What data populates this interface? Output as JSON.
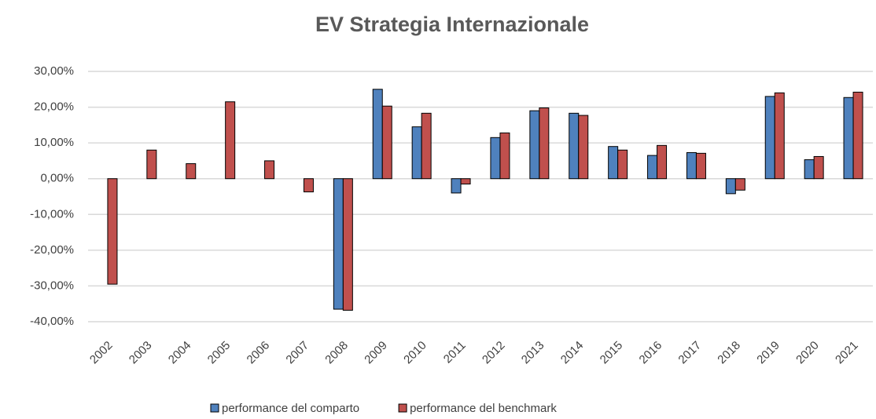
{
  "chart_data": {
    "type": "bar",
    "title": "EV Strategia Internazionale",
    "categories": [
      "2002",
      "2003",
      "2004",
      "2005",
      "2006",
      "2007",
      "2008",
      "2009",
      "2010",
      "2011",
      "2012",
      "2013",
      "2014",
      "2015",
      "2016",
      "2017",
      "2018",
      "2019",
      "2020",
      "2021"
    ],
    "series": [
      {
        "name": "performance del comparto",
        "color": "#4f81bd",
        "values": [
          null,
          null,
          null,
          null,
          null,
          null,
          -36.5,
          25,
          14.5,
          -4,
          11.5,
          19,
          18.3,
          9,
          6.5,
          7.3,
          -4.2,
          23,
          5.3,
          22.7
        ]
      },
      {
        "name": "performance del benchmark",
        "color": "#c0504d",
        "values": [
          -29.5,
          8,
          4.2,
          21.5,
          5,
          -3.7,
          -36.8,
          20.3,
          18.3,
          -1.5,
          12.8,
          19.8,
          17.7,
          8,
          9.3,
          7.1,
          -3.2,
          24,
          6.2,
          24.2
        ]
      }
    ],
    "ylim": [
      -40,
      30
    ],
    "yticks": [
      {
        "value": -40,
        "label": "-40,00%"
      },
      {
        "value": -30,
        "label": "-30,00%"
      },
      {
        "value": -20,
        "label": "-20,00%"
      },
      {
        "value": -10,
        "label": "-10,00%"
      },
      {
        "value": 0,
        "label": "0,00%"
      },
      {
        "value": 10,
        "label": "10,00%"
      },
      {
        "value": 20,
        "label": "20,00%"
      },
      {
        "value": 30,
        "label": "30,00%"
      }
    ],
    "grid": true,
    "legend": "bottom"
  }
}
